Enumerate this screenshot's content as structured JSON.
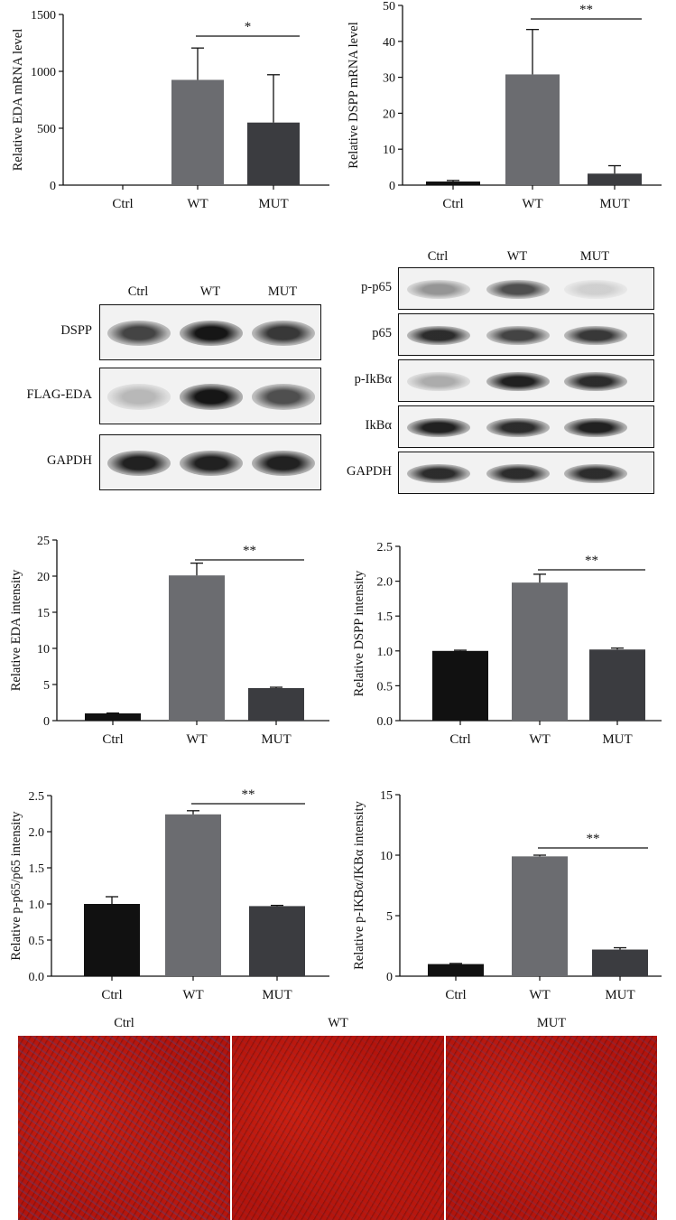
{
  "charts": [
    {
      "type": "bar",
      "categories": [
        "Ctrl",
        "WT",
        "MUT"
      ],
      "values": [
        0,
        925,
        550
      ],
      "errors": [
        0,
        280,
        420
      ],
      "ylabel": "Relative EDA mRNA level",
      "ylim": [
        0,
        1500
      ],
      "yticks": [
        "0",
        "500",
        "1000",
        "1500"
      ],
      "bar_colors": [
        "#111111",
        "#6b6c70",
        "#3b3c40"
      ],
      "sig": {
        "label": "*",
        "from": "WT",
        "to": "MUT"
      }
    },
    {
      "type": "bar",
      "categories": [
        "Ctrl",
        "WT",
        "MUT"
      ],
      "values": [
        1.0,
        30.8,
        3.2
      ],
      "errors": [
        0.3,
        12.5,
        2.2
      ],
      "ylabel": "Relative DSPP mRNA level",
      "ylim": [
        0,
        50
      ],
      "yticks": [
        "0",
        "10",
        "20",
        "30",
        "40",
        "50"
      ],
      "bar_colors": [
        "#111111",
        "#6b6c70",
        "#3b3c40"
      ],
      "sig": {
        "label": "**",
        "from": "WT",
        "to": "MUT"
      }
    },
    {
      "type": "bar",
      "categories": [
        "Ctrl",
        "WT",
        "MUT"
      ],
      "values": [
        1.0,
        20.1,
        4.5
      ],
      "errors": [
        0.05,
        1.7,
        0.12
      ],
      "ylabel": "Relative EDA intensity",
      "ylim": [
        0,
        25
      ],
      "yticks": [
        "0",
        "5",
        "10",
        "15",
        "20",
        "25"
      ],
      "bar_colors": [
        "#111111",
        "#6b6c70",
        "#3b3c40"
      ],
      "sig": {
        "label": "**",
        "from": "WT",
        "to": "MUT"
      }
    },
    {
      "type": "bar",
      "categories": [
        "Ctrl",
        "WT",
        "MUT"
      ],
      "values": [
        1.0,
        1.98,
        1.02
      ],
      "errors": [
        0.01,
        0.12,
        0.02
      ],
      "ylabel": "Relative DSPP intensity",
      "ylim": [
        0,
        2.5
      ],
      "yticks": [
        "0.0",
        "0.5",
        "1.0",
        "1.5",
        "2.0",
        "2.5"
      ],
      "bar_colors": [
        "#111111",
        "#6b6c70",
        "#3b3c40"
      ],
      "sig": {
        "label": "**",
        "from": "WT",
        "to": "MUT"
      }
    },
    {
      "type": "bar",
      "categories": [
        "Ctrl",
        "WT",
        "MUT"
      ],
      "values": [
        1.0,
        2.24,
        0.97
      ],
      "errors": [
        0.1,
        0.05,
        0.01
      ],
      "ylabel": "Relative p-p65/p65 intensity",
      "ylim": [
        0,
        2.5
      ],
      "yticks": [
        "0.0",
        "0.5",
        "1.0",
        "1.5",
        "2.0",
        "2.5"
      ],
      "bar_colors": [
        "#111111",
        "#6b6c70",
        "#3b3c40"
      ],
      "sig": {
        "label": "**",
        "from": "WT",
        "to": "MUT"
      }
    },
    {
      "type": "bar",
      "categories": [
        "Ctrl",
        "WT",
        "MUT"
      ],
      "values": [
        1.0,
        9.9,
        2.2
      ],
      "errors": [
        0.05,
        0.1,
        0.15
      ],
      "ylabel": "Relative p-IKBα/IKBα intensity",
      "ylim": [
        0,
        15
      ],
      "yticks": [
        "0",
        "5",
        "10",
        "15"
      ],
      "bar_colors": [
        "#111111",
        "#6b6c70",
        "#3b3c40"
      ],
      "sig": {
        "label": "**",
        "from": "WT",
        "to": "MUT"
      }
    }
  ],
  "blot_left": {
    "lanes": [
      "Ctrl",
      "WT",
      "MUT"
    ],
    "rows": [
      {
        "label": "DSPP",
        "intensity": [
          0.75,
          0.95,
          0.8
        ]
      },
      {
        "label": "FLAG-EDA",
        "intensity": [
          0.25,
          0.95,
          0.7
        ]
      },
      {
        "label": "GAPDH",
        "intensity": [
          0.9,
          0.9,
          0.9
        ]
      }
    ]
  },
  "blot_right": {
    "lanes": [
      "Ctrl",
      "WT",
      "MUT"
    ],
    "rows": [
      {
        "label": "p-p65",
        "intensity": [
          0.4,
          0.7,
          0.15
        ]
      },
      {
        "label": "p65",
        "intensity": [
          0.85,
          0.75,
          0.8
        ]
      },
      {
        "label": "p-IkBα",
        "intensity": [
          0.3,
          0.9,
          0.85
        ]
      },
      {
        "label": "IkBα",
        "intensity": [
          0.9,
          0.85,
          0.9
        ]
      },
      {
        "label": "GAPDH",
        "intensity": [
          0.85,
          0.85,
          0.85
        ]
      }
    ]
  },
  "staining": {
    "labels": [
      "Ctrl",
      "WT",
      "MUT"
    ],
    "colors": {
      "red": "#b3140c",
      "dark": "#2a0606",
      "blue": "#3a4d9a"
    }
  }
}
